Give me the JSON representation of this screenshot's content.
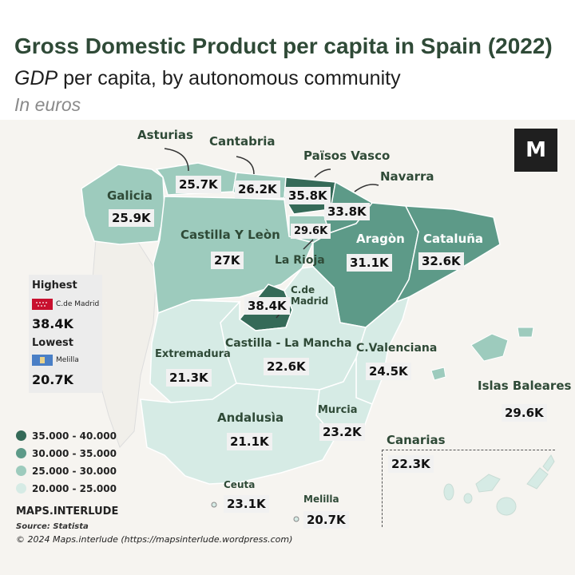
{
  "title": "Gross Domestic Product per capita in Spain (2022)",
  "subtitle_italic": "GDP",
  "subtitle_rest": " per capita, by autonomous community",
  "unit": "In euros",
  "logo": "M",
  "colors": {
    "c35_40": "#356a58",
    "c30_35": "#5d9a88",
    "c25_30": "#9dcbbd",
    "c20_25": "#d6ebe5",
    "title": "#2f4a37"
  },
  "regions": {
    "asturias": {
      "name": "Asturias",
      "value": "25.7K"
    },
    "cantabria": {
      "name": "Cantabria",
      "value": "26.2K"
    },
    "pais_vasco": {
      "name": "Països Vasco",
      "value": "35.8K"
    },
    "navarra": {
      "name": "Navarra",
      "value": "33.8K"
    },
    "galicia": {
      "name": "Galicia",
      "value": "25.9K"
    },
    "castilla_leon": {
      "name": "Castilla Y Leòn",
      "value": "27K"
    },
    "la_rioja": {
      "name": "La Rioja",
      "value": "29.6K"
    },
    "aragon": {
      "name": "Aragòn",
      "value": "31.1K"
    },
    "cataluna": {
      "name": "Cataluña",
      "value": "32.6K"
    },
    "madrid": {
      "name": "C.de Madrid",
      "value": "38.4K"
    },
    "castilla_mancha": {
      "name": "Castilla - La Mancha",
      "value": "22.6K"
    },
    "extremadura": {
      "name": "Extremadura",
      "value": "21.3K"
    },
    "valenciana": {
      "name": "C.Valenciana",
      "value": "24.5K"
    },
    "baleares": {
      "name": "Islas Baleares",
      "value": "29.6K"
    },
    "murcia": {
      "name": "Murcia",
      "value": "23.2K"
    },
    "andalusia": {
      "name": "Andalusìa",
      "value": "21.1K"
    },
    "canarias": {
      "name": "Canarias",
      "value": "22.3K"
    },
    "ceuta": {
      "name": "Ceuta",
      "value": "23.1K"
    },
    "melilla": {
      "name": "Melilla",
      "value": "20.7K"
    }
  },
  "highlights": {
    "highest_label": "Highest",
    "highest_name": "C.de Madrid",
    "highest_value": "38.4K",
    "lowest_label": "Lowest",
    "lowest_name": "Melilla",
    "lowest_value": "20.7K"
  },
  "legend": [
    "35.000 - 40.000",
    "30.000 - 35.000",
    "25.000 - 30.000",
    "20.000 - 25.000"
  ],
  "footer": {
    "brand": "MAPS.INTERLUDE",
    "source": "Source: Statista",
    "copyright": "© 2024 Maps.interlude (https://mapsinterlude.wordpress.com)"
  }
}
